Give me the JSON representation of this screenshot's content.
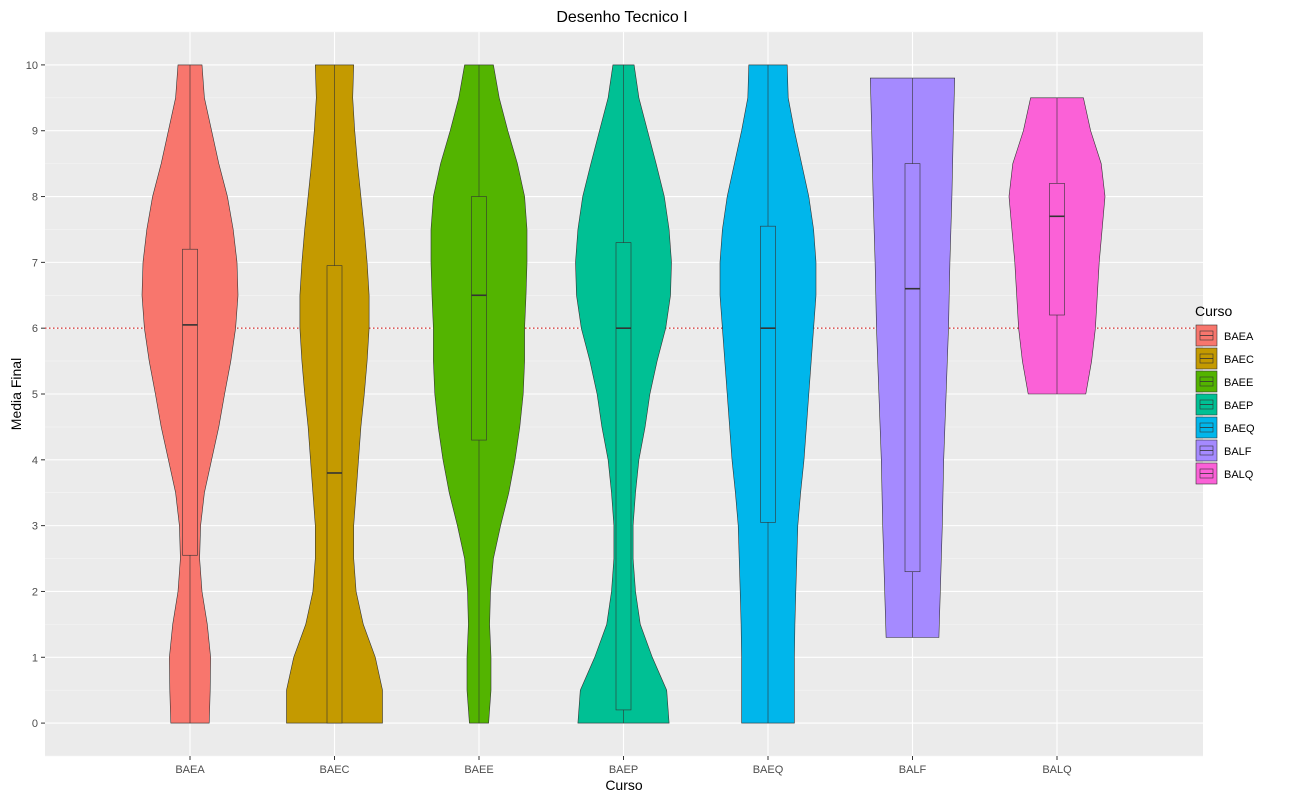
{
  "chart_data": {
    "type": "violin",
    "title": "Desenho Tecnico I",
    "xlabel": "Curso",
    "ylabel": "Media Final",
    "ylim": [
      -0.5,
      10.5
    ],
    "yticks": [
      0,
      1,
      2,
      3,
      4,
      5,
      6,
      7,
      8,
      9,
      10
    ],
    "reference_line": {
      "y": 6,
      "color": "#cc0000",
      "style": "dotted"
    },
    "grid": true,
    "legend": {
      "title": "Curso",
      "position": "right"
    },
    "categories": [
      "BAEA",
      "BAEC",
      "BAEE",
      "BAEP",
      "BAEQ",
      "BALF",
      "BALQ"
    ],
    "series": [
      {
        "name": "BAEA",
        "color": "#F8766D",
        "box": {
          "min": 0,
          "q1": 2.55,
          "median": 6.05,
          "q3": 7.2,
          "max": 10
        },
        "density": [
          [
            0,
            0.4
          ],
          [
            0.5,
            0.42
          ],
          [
            1.0,
            0.43
          ],
          [
            1.5,
            0.36
          ],
          [
            2.0,
            0.25
          ],
          [
            2.5,
            0.2
          ],
          [
            3.0,
            0.22
          ],
          [
            3.5,
            0.3
          ],
          [
            4.0,
            0.45
          ],
          [
            4.5,
            0.6
          ],
          [
            5.0,
            0.72
          ],
          [
            5.5,
            0.85
          ],
          [
            6.0,
            0.95
          ],
          [
            6.5,
            1.0
          ],
          [
            7.0,
            0.98
          ],
          [
            7.5,
            0.9
          ],
          [
            8.0,
            0.78
          ],
          [
            8.5,
            0.6
          ],
          [
            9.0,
            0.45
          ],
          [
            9.5,
            0.3
          ],
          [
            10.0,
            0.25
          ]
        ]
      },
      {
        "name": "BAEC",
        "color": "#C49A00",
        "box": {
          "min": 0,
          "q1": 0,
          "median": 3.8,
          "q3": 6.95,
          "max": 10
        },
        "density": [
          [
            0,
            1.0
          ],
          [
            0.5,
            1.0
          ],
          [
            1.0,
            0.85
          ],
          [
            1.5,
            0.6
          ],
          [
            2.0,
            0.45
          ],
          [
            2.5,
            0.4
          ],
          [
            3.0,
            0.4
          ],
          [
            3.5,
            0.45
          ],
          [
            4.0,
            0.5
          ],
          [
            4.5,
            0.55
          ],
          [
            5.0,
            0.62
          ],
          [
            5.5,
            0.68
          ],
          [
            6.0,
            0.72
          ],
          [
            6.5,
            0.72
          ],
          [
            7.0,
            0.68
          ],
          [
            7.5,
            0.62
          ],
          [
            8.0,
            0.55
          ],
          [
            8.5,
            0.48
          ],
          [
            9.0,
            0.42
          ],
          [
            9.5,
            0.38
          ],
          [
            10.0,
            0.4
          ]
        ]
      },
      {
        "name": "BAEE",
        "color": "#53B400",
        "box": {
          "min": 0,
          "q1": 4.3,
          "median": 6.5,
          "q3": 8.0,
          "max": 10
        },
        "density": [
          [
            0,
            0.2
          ],
          [
            0.5,
            0.25
          ],
          [
            1.0,
            0.25
          ],
          [
            1.5,
            0.22
          ],
          [
            2.0,
            0.24
          ],
          [
            2.5,
            0.3
          ],
          [
            3.0,
            0.45
          ],
          [
            3.5,
            0.62
          ],
          [
            4.0,
            0.75
          ],
          [
            4.5,
            0.85
          ],
          [
            5.0,
            0.92
          ],
          [
            5.5,
            0.95
          ],
          [
            6.0,
            0.95
          ],
          [
            6.5,
            0.98
          ],
          [
            7.0,
            1.0
          ],
          [
            7.5,
            1.0
          ],
          [
            8.0,
            0.95
          ],
          [
            8.5,
            0.8
          ],
          [
            9.0,
            0.6
          ],
          [
            9.5,
            0.42
          ],
          [
            10.0,
            0.3
          ]
        ]
      },
      {
        "name": "BAEP",
        "color": "#00C094",
        "box": {
          "min": 0,
          "q1": 0.2,
          "median": 6.0,
          "q3": 7.3,
          "max": 10
        },
        "density": [
          [
            0,
            0.95
          ],
          [
            0.5,
            0.9
          ],
          [
            1.0,
            0.6
          ],
          [
            1.5,
            0.35
          ],
          [
            2.0,
            0.25
          ],
          [
            2.5,
            0.2
          ],
          [
            3.0,
            0.2
          ],
          [
            3.5,
            0.25
          ],
          [
            4.0,
            0.32
          ],
          [
            4.5,
            0.45
          ],
          [
            5.0,
            0.55
          ],
          [
            5.5,
            0.7
          ],
          [
            6.0,
            0.88
          ],
          [
            6.5,
            0.98
          ],
          [
            7.0,
            1.0
          ],
          [
            7.5,
            0.95
          ],
          [
            8.0,
            0.85
          ],
          [
            8.5,
            0.68
          ],
          [
            9.0,
            0.5
          ],
          [
            9.5,
            0.32
          ],
          [
            10.0,
            0.22
          ]
        ]
      },
      {
        "name": "BAEQ",
        "color": "#00B6EB",
        "box": {
          "min": 0,
          "q1": 3.05,
          "median": 6.0,
          "q3": 7.55,
          "max": 10
        },
        "density": [
          [
            0,
            0.55
          ],
          [
            0.5,
            0.55
          ],
          [
            1.0,
            0.55
          ],
          [
            1.5,
            0.56
          ],
          [
            2.0,
            0.58
          ],
          [
            2.5,
            0.6
          ],
          [
            3.0,
            0.62
          ],
          [
            3.5,
            0.68
          ],
          [
            4.0,
            0.75
          ],
          [
            4.5,
            0.8
          ],
          [
            5.0,
            0.85
          ],
          [
            5.5,
            0.9
          ],
          [
            6.0,
            0.95
          ],
          [
            6.5,
            1.0
          ],
          [
            7.0,
            1.0
          ],
          [
            7.5,
            0.95
          ],
          [
            8.0,
            0.85
          ],
          [
            8.5,
            0.7
          ],
          [
            9.0,
            0.55
          ],
          [
            9.5,
            0.42
          ],
          [
            10.0,
            0.4
          ]
        ]
      },
      {
        "name": "BALF",
        "color": "#A58AFF",
        "box": {
          "min": 1.3,
          "q1": 2.3,
          "median": 6.6,
          "q3": 8.5,
          "max": 9.8
        },
        "density": [
          [
            1.3,
            0.55
          ],
          [
            2.0,
            0.58
          ],
          [
            2.5,
            0.6
          ],
          [
            3.0,
            0.62
          ],
          [
            4.0,
            0.65
          ],
          [
            5.0,
            0.7
          ],
          [
            6.0,
            0.75
          ],
          [
            7.0,
            0.78
          ],
          [
            8.0,
            0.82
          ],
          [
            9.0,
            0.85
          ],
          [
            9.8,
            0.88
          ]
        ]
      },
      {
        "name": "BALQ",
        "color": "#FB61D7",
        "box": {
          "min": 5.0,
          "q1": 6.2,
          "median": 7.7,
          "q3": 8.2,
          "max": 9.5
        },
        "density": [
          [
            5.0,
            0.6
          ],
          [
            5.5,
            0.72
          ],
          [
            6.0,
            0.8
          ],
          [
            6.5,
            0.84
          ],
          [
            7.0,
            0.88
          ],
          [
            7.5,
            0.94
          ],
          [
            8.0,
            1.0
          ],
          [
            8.5,
            0.92
          ],
          [
            9.0,
            0.7
          ],
          [
            9.5,
            0.55
          ]
        ]
      }
    ]
  }
}
